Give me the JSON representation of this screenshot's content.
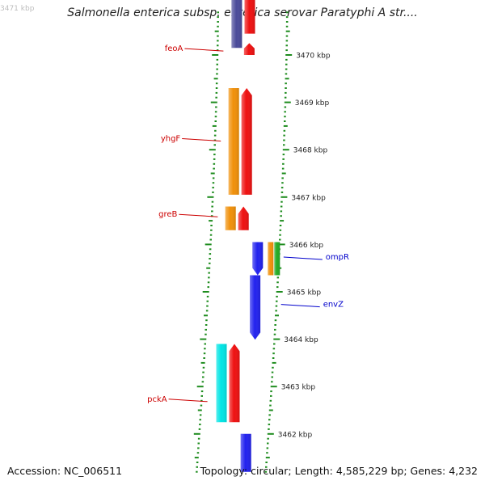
{
  "title": "Salmonella enterica subsp. enterica serovar Paratyphi A str....",
  "footer": {
    "accession": "Accession: NC_006511",
    "topology": "Topology: circular; Length: 4,585,229 bp; Genes: 4,232"
  },
  "colors": {
    "backbone": "#8c8c8c",
    "tick": "#1e8c1e",
    "scale_label": "#222222",
    "forward_label": "#cc0000",
    "reverse_label": "#0000cc"
  },
  "chart_data": {
    "type": "genome-map",
    "view_kbp": [
      3461.2,
      3471.3
    ],
    "scale_labels": [
      {
        "kbp": 3471,
        "text": "3471 kbp",
        "faded": true
      },
      {
        "kbp": 3470,
        "text": "3470 kbp"
      },
      {
        "kbp": 3469,
        "text": "3469 kbp"
      },
      {
        "kbp": 3468,
        "text": "3468 kbp"
      },
      {
        "kbp": 3467,
        "text": "3467 kbp"
      },
      {
        "kbp": 3466,
        "text": "3466 kbp"
      },
      {
        "kbp": 3465,
        "text": "3465 kbp"
      },
      {
        "kbp": 3464,
        "text": "3464 kbp"
      },
      {
        "kbp": 3463,
        "text": "3463 kbp"
      },
      {
        "kbp": 3462,
        "text": "3462 kbp"
      }
    ],
    "gene_labels": [
      {
        "name": "feoA",
        "strand": "forward",
        "kbp": 3470.1
      },
      {
        "name": "yhgF",
        "strand": "forward",
        "kbp": 3468.2
      },
      {
        "name": "greB",
        "strand": "forward",
        "kbp": 3466.6
      },
      {
        "name": "ompR",
        "strand": "reverse",
        "kbp": 3465.7
      },
      {
        "name": "envZ",
        "strand": "reverse",
        "kbp": 3464.7
      },
      {
        "name": "pckA",
        "strand": "forward",
        "kbp": 3462.7
      }
    ],
    "features": [
      {
        "track": "f1",
        "color": "#4a4a9a",
        "start": 3470.15,
        "end": 3471.3,
        "arrow": false
      },
      {
        "track": "f2",
        "color": "#ee1111",
        "start": 3470.45,
        "end": 3471.3,
        "arrow": false
      },
      {
        "track": "f2",
        "color": "#ee1111",
        "start": 3470.0,
        "end": 3470.25,
        "arrow": true
      },
      {
        "track": "f1",
        "color": "#f0900a",
        "start": 3467.05,
        "end": 3469.3,
        "arrow": false
      },
      {
        "track": "f2",
        "color": "#ee1111",
        "start": 3467.05,
        "end": 3469.3,
        "arrow": true
      },
      {
        "track": "f1",
        "color": "#f0900a",
        "start": 3466.3,
        "end": 3466.8,
        "arrow": false
      },
      {
        "track": "f2",
        "color": "#ee1111",
        "start": 3466.3,
        "end": 3466.8,
        "arrow": true
      },
      {
        "track": "r1",
        "color": "#2222ee",
        "start": 3465.35,
        "end": 3466.05,
        "arrow": true
      },
      {
        "track": "r2",
        "color": "#f0900a",
        "start": 3465.35,
        "end": 3466.05,
        "arrow": false
      },
      {
        "track": "r3",
        "color": "#22aa22",
        "start": 3465.35,
        "end": 3466.05,
        "arrow": false
      },
      {
        "track": "r1",
        "color": "#2222ee",
        "start": 3463.99,
        "end": 3465.35,
        "arrow": true
      },
      {
        "track": "f1",
        "color": "#00e5e5",
        "start": 3462.25,
        "end": 3463.9,
        "arrow": false
      },
      {
        "track": "f2",
        "color": "#ee1111",
        "start": 3462.25,
        "end": 3463.9,
        "arrow": true
      },
      {
        "track": "r1",
        "color": "#2222ee",
        "start": 3461.2,
        "end": 3462.0,
        "arrow": false
      }
    ]
  }
}
